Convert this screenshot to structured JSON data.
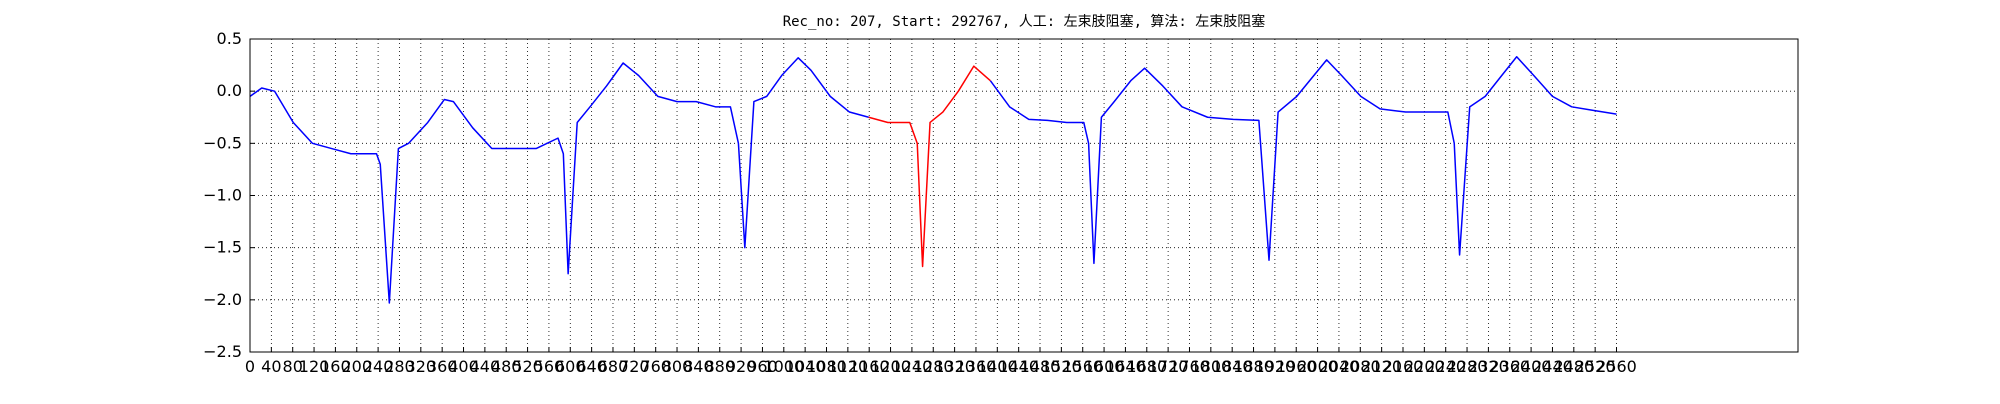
{
  "chart_data": {
    "type": "line",
    "title": "Rec_no: 207, Start: 292767, 人工: 左束肢阻塞, 算法: 左束肢阻塞",
    "xlim": [
      0,
      2900
    ],
    "ylim": [
      -2.5,
      0.5
    ],
    "xticks": [
      0,
      40,
      80,
      120,
      160,
      200,
      240,
      280,
      320,
      360,
      400,
      440,
      480,
      520,
      560,
      600,
      640,
      680,
      720,
      760,
      800,
      840,
      880,
      920,
      960,
      1000,
      1040,
      1080,
      1120,
      1160,
      1200,
      1240,
      1280,
      1320,
      1360,
      1400,
      1440,
      1480,
      1520,
      1560,
      1600,
      1640,
      1680,
      1720,
      1760,
      1800,
      1840,
      1880,
      1920,
      1960,
      2000,
      2040,
      2080,
      2120,
      2160,
      2200,
      2240,
      2280,
      2320,
      2360,
      2400,
      2440,
      2480,
      2520,
      2560
    ],
    "yticks": [
      {
        "value": 0.5,
        "label": "0.5"
      },
      {
        "value": 0.0,
        "label": "0.0"
      },
      {
        "value": -0.5,
        "label": "−0.5"
      },
      {
        "value": -1.0,
        "label": "−1.0"
      },
      {
        "value": -1.5,
        "label": "−1.5"
      },
      {
        "value": -2.0,
        "label": "−2.0"
      },
      {
        "value": -2.5,
        "label": "−2.5"
      }
    ],
    "grid": true,
    "series": [
      {
        "color": "#0000ff",
        "x": [
          0,
          22,
          46,
          81,
          117,
          153,
          189,
          237,
          244,
          261,
          278,
          297,
          333,
          364,
          381,
          417,
          453,
          489,
          536,
          577,
          587,
          596,
          613,
          637,
          668,
          699,
          728,
          764,
          800,
          836,
          872,
          900,
          915,
          927,
          944,
          968,
          996,
          1027,
          1051,
          1087,
          1123,
          1159,
          1270,
          1387,
          1423,
          1459,
          1494,
          1530,
          1562,
          1571,
          1581,
          1595,
          1619,
          1650,
          1676,
          1710,
          1746,
          1794,
          1842,
          1890,
          1909,
          1926,
          1961,
          1993,
          2017,
          2045,
          2081,
          2117,
          2165,
          2213,
          2244,
          2256,
          2266,
          2285,
          2314,
          2345,
          2373,
          2405,
          2440,
          2476,
          2512,
          2560
        ],
        "values": [
          -0.05,
          0.03,
          0.0,
          -0.3,
          -0.5,
          -0.55,
          -0.6,
          -0.6,
          -0.7,
          -2.03,
          -0.55,
          -0.5,
          -0.3,
          -0.08,
          -0.1,
          -0.35,
          -0.55,
          -0.55,
          -0.55,
          -0.45,
          -0.6,
          -1.75,
          -0.3,
          -0.15,
          0.05,
          0.27,
          0.15,
          -0.05,
          -0.1,
          -0.1,
          -0.15,
          -0.15,
          -0.5,
          -1.5,
          -0.1,
          -0.05,
          0.15,
          0.32,
          0.2,
          -0.05,
          -0.2,
          -0.25,
          null,
          0.1,
          -0.15,
          -0.27,
          -0.28,
          -0.3,
          -0.3,
          -0.5,
          -1.65,
          -0.25,
          -0.1,
          0.1,
          0.22,
          0.05,
          -0.15,
          -0.25,
          -0.27,
          -0.28,
          -1.62,
          -0.2,
          -0.05,
          0.15,
          0.3,
          0.15,
          -0.05,
          -0.17,
          -0.2,
          -0.2,
          -0.2,
          -0.5,
          -1.57,
          -0.15,
          -0.05,
          0.15,
          0.33,
          0.15,
          -0.05,
          -0.15,
          -0.18,
          -0.22
        ]
      },
      {
        "color": "#ff0000",
        "x": [
          1159,
          1195,
          1236,
          1250,
          1260,
          1274,
          1298,
          1327,
          1356,
          1387
        ],
        "values": [
          -0.25,
          -0.3,
          -0.3,
          -0.5,
          -1.68,
          -0.3,
          -0.2,
          0.0,
          0.24,
          0.1
        ]
      }
    ]
  }
}
